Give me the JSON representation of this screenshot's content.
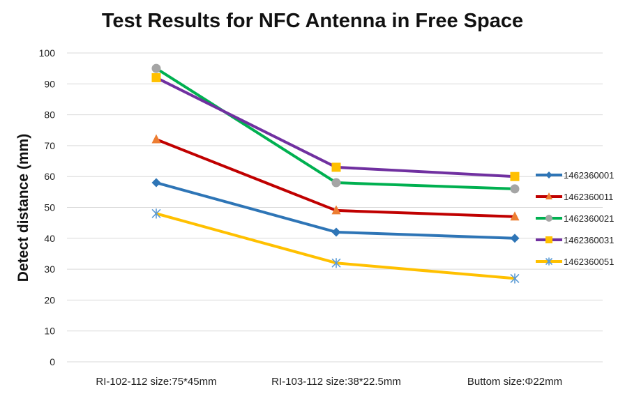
{
  "chart_data": {
    "type": "line",
    "title": "Test Results for NFC Antenna in Free Space",
    "xlabel": "",
    "ylabel": "Detect distance (mm)",
    "ylim": [
      0,
      100
    ],
    "y_ticks": [
      0,
      10,
      20,
      30,
      40,
      50,
      60,
      70,
      80,
      90,
      100
    ],
    "grid": true,
    "legend_position": "right",
    "categories": [
      "RI-102-112 size:75*45mm",
      "RI-103-112 size:38*22.5mm",
      "Buttom size:Φ22mm"
    ],
    "series": [
      {
        "name": "1462360001",
        "values": [
          58,
          42,
          40
        ],
        "color": "#2e75b6",
        "marker": "diamond"
      },
      {
        "name": "1462360011",
        "values": [
          72,
          49,
          47
        ],
        "color": "#c00000",
        "marker": "triangle",
        "marker_color": "#ed7d31"
      },
      {
        "name": "1462360021",
        "values": [
          95,
          58,
          56
        ],
        "color": "#00b050",
        "marker": "circle",
        "marker_color": "#a5a5a5"
      },
      {
        "name": "1462360031",
        "values": [
          92,
          63,
          60
        ],
        "color": "#7030a0",
        "marker": "square",
        "marker_color": "#ffc000"
      },
      {
        "name": "1462360051",
        "values": [
          48,
          32,
          27
        ],
        "color": "#ffc000",
        "marker": "asterisk",
        "marker_color": "#5b9bd5"
      }
    ]
  }
}
